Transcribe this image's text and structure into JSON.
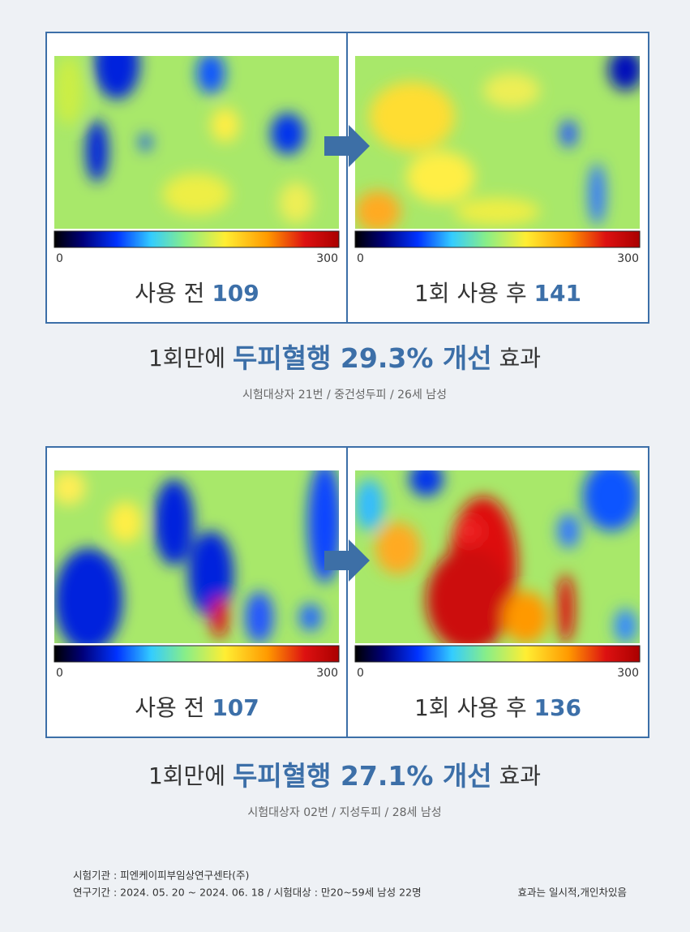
{
  "comparisons": [
    {
      "before": {
        "label": "사용 전",
        "value": 109
      },
      "after": {
        "label": "1회 사용 후",
        "value": 141
      },
      "scale": {
        "min": 0,
        "max": 300
      },
      "headline": {
        "lead": "1회만에",
        "highlight": "두피혈행 29.3% 개선",
        "tail": "효과"
      },
      "note": "시험대상자 21번 / 중건성두피 / 26세 남성"
    },
    {
      "before": {
        "label": "사용 전",
        "value": 107
      },
      "after": {
        "label": "1회 사용 후",
        "value": 136
      },
      "scale": {
        "min": 0,
        "max": 300
      },
      "headline": {
        "lead": "1회만에",
        "highlight": "두피혈행 27.1% 개선",
        "tail": "효과"
      },
      "note": "시험대상자 02번 / 지성두피 / 28세 남성"
    }
  ],
  "footer": {
    "lines": [
      "시험기관 : 피엔케이피부임상연구센타(주)",
      "연구기간 : 2024. 05. 20 ~ 2024. 06. 18 / 시험대상 : 만20~59세 남성 22명"
    ],
    "disclaimer": "효과는 일시적,개인차있음"
  }
}
